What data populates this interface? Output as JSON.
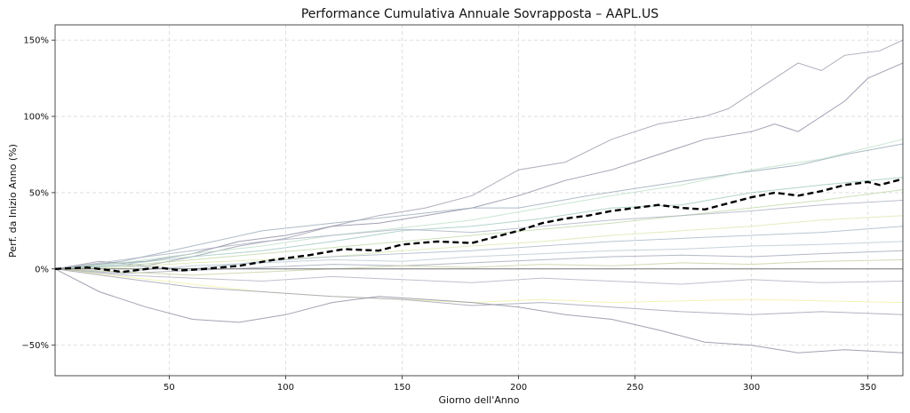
{
  "chart_data": {
    "type": "line",
    "title": "Performance Cumulativa Annuale Sovrapposta – AAPL.US",
    "xlabel": "Giorno dell'Anno",
    "ylabel": "Perf. da Inizio Anno (%)",
    "xlim": [
      1,
      365
    ],
    "ylim": [
      -70,
      160
    ],
    "xticks": [
      50,
      100,
      150,
      200,
      250,
      300,
      350
    ],
    "yticks": [
      -50,
      0,
      50,
      100,
      150
    ],
    "xtick_labels": [
      "50",
      "100",
      "150",
      "200",
      "250",
      "300",
      "350"
    ],
    "ytick_labels": [
      "−50%",
      "0%",
      "50%",
      "100%",
      "150%"
    ],
    "grid": true,
    "zero_line": 0,
    "average_series": {
      "style": "black dashed",
      "points": [
        [
          1,
          0
        ],
        [
          15,
          1
        ],
        [
          30,
          -2
        ],
        [
          45,
          1
        ],
        [
          55,
          -1
        ],
        [
          65,
          0
        ],
        [
          80,
          2
        ],
        [
          95,
          6
        ],
        [
          110,
          9
        ],
        [
          125,
          13
        ],
        [
          140,
          12
        ],
        [
          150,
          16
        ],
        [
          165,
          18
        ],
        [
          180,
          17
        ],
        [
          190,
          21
        ],
        [
          200,
          25
        ],
        [
          210,
          30
        ],
        [
          220,
          33
        ],
        [
          230,
          35
        ],
        [
          240,
          38
        ],
        [
          250,
          40
        ],
        [
          260,
          42
        ],
        [
          270,
          40
        ],
        [
          280,
          39
        ],
        [
          290,
          43
        ],
        [
          300,
          47
        ],
        [
          310,
          50
        ],
        [
          320,
          48
        ],
        [
          330,
          51
        ],
        [
          340,
          55
        ],
        [
          350,
          57
        ],
        [
          355,
          55
        ],
        [
          365,
          59
        ]
      ]
    },
    "series": [
      {
        "color": "#9a9aaa",
        "points": [
          [
            1,
            0
          ],
          [
            20,
            5
          ],
          [
            40,
            2
          ],
          [
            60,
            8
          ],
          [
            80,
            15
          ],
          [
            100,
            20
          ],
          [
            120,
            28
          ],
          [
            140,
            35
          ],
          [
            160,
            40
          ],
          [
            180,
            48
          ],
          [
            200,
            65
          ],
          [
            220,
            70
          ],
          [
            240,
            85
          ],
          [
            260,
            95
          ],
          [
            280,
            100
          ],
          [
            290,
            105
          ],
          [
            300,
            115
          ],
          [
            310,
            125
          ],
          [
            320,
            135
          ],
          [
            330,
            130
          ],
          [
            340,
            140
          ],
          [
            355,
            143
          ],
          [
            365,
            150
          ]
        ]
      },
      {
        "color": "#8a8aa0",
        "points": [
          [
            1,
            0
          ],
          [
            20,
            3
          ],
          [
            40,
            5
          ],
          [
            60,
            10
          ],
          [
            80,
            18
          ],
          [
            100,
            22
          ],
          [
            120,
            28
          ],
          [
            140,
            30
          ],
          [
            160,
            35
          ],
          [
            180,
            40
          ],
          [
            200,
            48
          ],
          [
            220,
            58
          ],
          [
            240,
            65
          ],
          [
            260,
            75
          ],
          [
            280,
            85
          ],
          [
            300,
            90
          ],
          [
            310,
            95
          ],
          [
            320,
            90
          ],
          [
            330,
            100
          ],
          [
            340,
            110
          ],
          [
            350,
            125
          ],
          [
            365,
            135
          ]
        ]
      },
      {
        "color": "#9aaab8",
        "points": [
          [
            1,
            0
          ],
          [
            30,
            5
          ],
          [
            60,
            15
          ],
          [
            90,
            25
          ],
          [
            120,
            30
          ],
          [
            150,
            35
          ],
          [
            180,
            40
          ],
          [
            200,
            40
          ],
          [
            230,
            48
          ],
          [
            260,
            55
          ],
          [
            290,
            62
          ],
          [
            320,
            68
          ],
          [
            340,
            75
          ],
          [
            365,
            82
          ]
        ]
      },
      {
        "color": "#bde0c8",
        "points": [
          [
            1,
            0
          ],
          [
            30,
            4
          ],
          [
            60,
            10
          ],
          [
            90,
            15
          ],
          [
            120,
            22
          ],
          [
            150,
            27
          ],
          [
            180,
            32
          ],
          [
            210,
            40
          ],
          [
            240,
            48
          ],
          [
            270,
            55
          ],
          [
            300,
            65
          ],
          [
            330,
            72
          ],
          [
            365,
            85
          ]
        ]
      },
      {
        "color": "#9ec8c0",
        "points": [
          [
            1,
            0
          ],
          [
            30,
            3
          ],
          [
            60,
            8
          ],
          [
            90,
            12
          ],
          [
            120,
            18
          ],
          [
            150,
            25
          ],
          [
            180,
            28
          ],
          [
            210,
            33
          ],
          [
            240,
            40
          ],
          [
            270,
            42
          ],
          [
            300,
            50
          ],
          [
            330,
            55
          ],
          [
            365,
            60
          ]
        ]
      },
      {
        "color": "#c0d8a8",
        "points": [
          [
            1,
            0
          ],
          [
            30,
            2
          ],
          [
            60,
            6
          ],
          [
            90,
            10
          ],
          [
            120,
            14
          ],
          [
            150,
            18
          ],
          [
            180,
            22
          ],
          [
            210,
            26
          ],
          [
            240,
            30
          ],
          [
            270,
            35
          ],
          [
            300,
            40
          ],
          [
            330,
            45
          ],
          [
            365,
            52
          ]
        ]
      },
      {
        "color": "#aab0c0",
        "points": [
          [
            1,
            0
          ],
          [
            30,
            6
          ],
          [
            60,
            12
          ],
          [
            90,
            18
          ],
          [
            120,
            22
          ],
          [
            150,
            26
          ],
          [
            180,
            24
          ],
          [
            210,
            28
          ],
          [
            240,
            32
          ],
          [
            270,
            35
          ],
          [
            300,
            38
          ],
          [
            330,
            42
          ],
          [
            365,
            45
          ]
        ]
      },
      {
        "color": "#d8e8b0",
        "points": [
          [
            1,
            0
          ],
          [
            30,
            1
          ],
          [
            60,
            4
          ],
          [
            90,
            6
          ],
          [
            120,
            8
          ],
          [
            150,
            12
          ],
          [
            180,
            15
          ],
          [
            210,
            18
          ],
          [
            240,
            22
          ],
          [
            270,
            25
          ],
          [
            300,
            28
          ],
          [
            330,
            32
          ],
          [
            365,
            35
          ]
        ]
      },
      {
        "color": "#a8b8c8",
        "points": [
          [
            1,
            0
          ],
          [
            30,
            2
          ],
          [
            60,
            0
          ],
          [
            90,
            5
          ],
          [
            120,
            8
          ],
          [
            150,
            10
          ],
          [
            180,
            12
          ],
          [
            210,
            15
          ],
          [
            240,
            18
          ],
          [
            270,
            20
          ],
          [
            300,
            22
          ],
          [
            330,
            24
          ],
          [
            365,
            28
          ]
        ]
      },
      {
        "color": "#b8c8d0",
        "points": [
          [
            1,
            0
          ],
          [
            30,
            -2
          ],
          [
            60,
            2
          ],
          [
            90,
            4
          ],
          [
            120,
            6
          ],
          [
            150,
            5
          ],
          [
            180,
            8
          ],
          [
            210,
            10
          ],
          [
            240,
            12
          ],
          [
            270,
            13
          ],
          [
            300,
            15
          ],
          [
            330,
            16
          ],
          [
            365,
            18
          ]
        ]
      },
      {
        "color": "#a0a8b8",
        "points": [
          [
            1,
            0
          ],
          [
            30,
            -3
          ],
          [
            60,
            -1
          ],
          [
            90,
            1
          ],
          [
            120,
            3
          ],
          [
            150,
            2
          ],
          [
            180,
            4
          ],
          [
            210,
            6
          ],
          [
            240,
            8
          ],
          [
            270,
            9
          ],
          [
            300,
            8
          ],
          [
            330,
            10
          ],
          [
            365,
            12
          ]
        ]
      },
      {
        "color": "#c8d0a0",
        "points": [
          [
            1,
            0
          ],
          [
            30,
            -2
          ],
          [
            60,
            -4
          ],
          [
            90,
            -2
          ],
          [
            120,
            0
          ],
          [
            150,
            2
          ],
          [
            180,
            1
          ],
          [
            210,
            3
          ],
          [
            240,
            2
          ],
          [
            270,
            4
          ],
          [
            300,
            3
          ],
          [
            330,
            5
          ],
          [
            365,
            6
          ]
        ]
      },
      {
        "color": "#b0b0c0",
        "points": [
          [
            1,
            0
          ],
          [
            30,
            -4
          ],
          [
            60,
            -6
          ],
          [
            90,
            -8
          ],
          [
            120,
            -5
          ],
          [
            150,
            -7
          ],
          [
            180,
            -9
          ],
          [
            210,
            -6
          ],
          [
            240,
            -8
          ],
          [
            270,
            -10
          ],
          [
            300,
            -7
          ],
          [
            330,
            -9
          ],
          [
            365,
            -8
          ]
        ]
      },
      {
        "color": "#f0f0a8",
        "points": [
          [
            1,
            0
          ],
          [
            30,
            -5
          ],
          [
            60,
            -10
          ],
          [
            90,
            -15
          ],
          [
            120,
            -18
          ],
          [
            150,
            -20
          ],
          [
            180,
            -22
          ],
          [
            210,
            -20
          ],
          [
            240,
            -22
          ],
          [
            270,
            -21
          ],
          [
            300,
            -20
          ],
          [
            330,
            -21
          ],
          [
            365,
            -22
          ]
        ]
      },
      {
        "color": "#9ea0b0",
        "points": [
          [
            1,
            0
          ],
          [
            30,
            -6
          ],
          [
            60,
            -12
          ],
          [
            90,
            -15
          ],
          [
            120,
            -18
          ],
          [
            150,
            -20
          ],
          [
            180,
            -24
          ],
          [
            210,
            -22
          ],
          [
            240,
            -25
          ],
          [
            270,
            -28
          ],
          [
            300,
            -30
          ],
          [
            330,
            -28
          ],
          [
            365,
            -30
          ]
        ]
      },
      {
        "color": "#8a8c9c",
        "points": [
          [
            1,
            0
          ],
          [
            20,
            -15
          ],
          [
            40,
            -25
          ],
          [
            60,
            -33
          ],
          [
            80,
            -35
          ],
          [
            100,
            -30
          ],
          [
            120,
            -22
          ],
          [
            140,
            -18
          ],
          [
            160,
            -20
          ],
          [
            180,
            -22
          ],
          [
            200,
            -25
          ],
          [
            220,
            -30
          ],
          [
            240,
            -33
          ],
          [
            260,
            -40
          ],
          [
            280,
            -48
          ],
          [
            300,
            -50
          ],
          [
            320,
            -55
          ],
          [
            340,
            -53
          ],
          [
            365,
            -55
          ]
        ]
      }
    ]
  }
}
